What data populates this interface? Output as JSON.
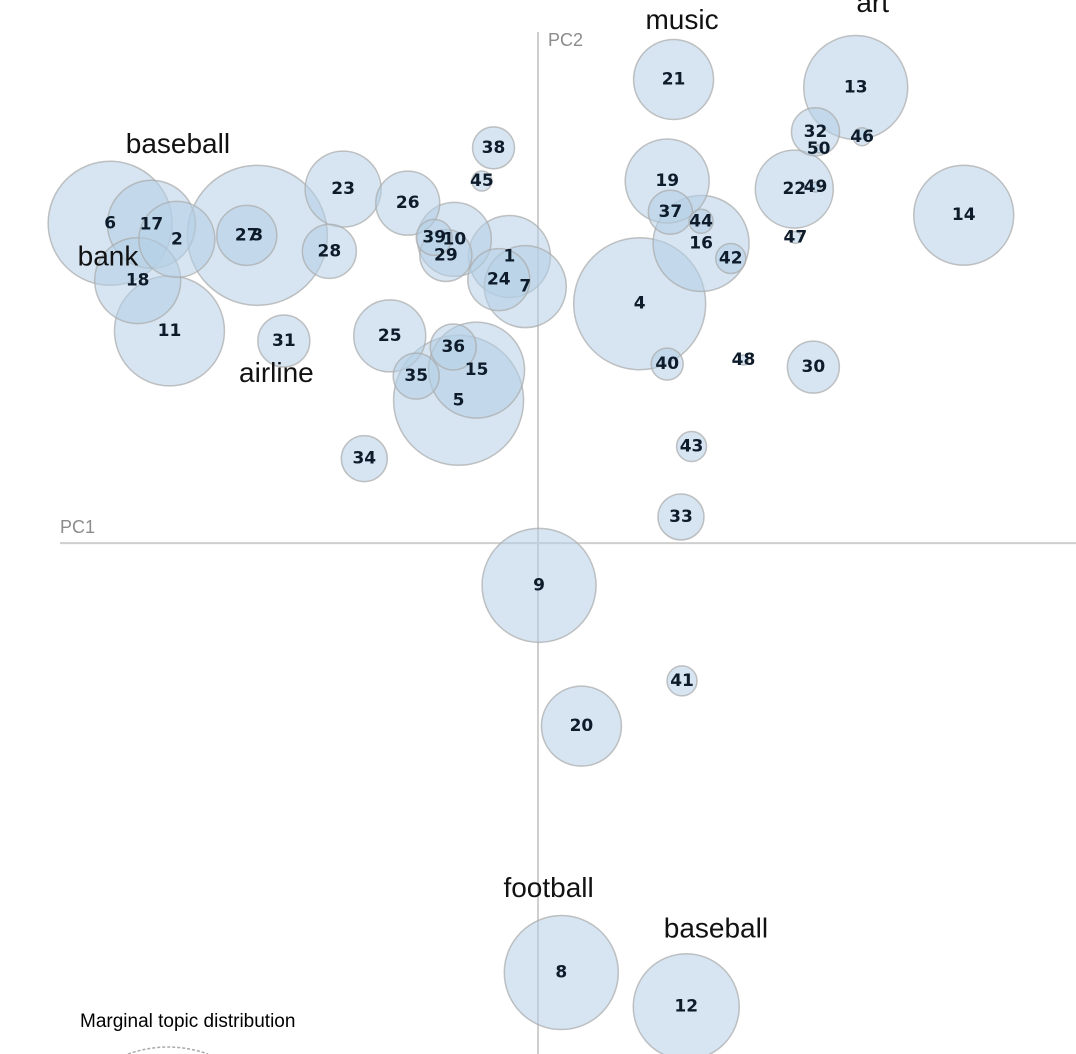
{
  "chart_data": {
    "type": "scatter",
    "xlabel": "PC1",
    "ylabel": "PC2",
    "xlim": [
      -508,
      508
    ],
    "ylim": [
      -508,
      540
    ],
    "grid": false,
    "legend": {
      "title": "Marginal topic distribution",
      "placement": "bottom-left"
    },
    "points": [
      {
        "label": "1",
        "x": -27,
        "y": 285,
        "size": 41
      },
      {
        "label": "2",
        "x": -341,
        "y": 302,
        "size": 38
      },
      {
        "label": "3",
        "x": -265,
        "y": 306,
        "size": 70
      },
      {
        "label": "4",
        "x": 96,
        "y": 238,
        "size": 66
      },
      {
        "label": "5",
        "x": -75,
        "y": 142,
        "size": 65
      },
      {
        "label": "6",
        "x": -404,
        "y": 318,
        "size": 62
      },
      {
        "label": "7",
        "x": -12,
        "y": 255,
        "size": 41
      },
      {
        "label": "8",
        "x": 22,
        "y": -427,
        "size": 57
      },
      {
        "label": "9",
        "x": 1,
        "y": -42,
        "size": 57
      },
      {
        "label": "10",
        "x": -79,
        "y": 302,
        "size": 37
      },
      {
        "label": "11",
        "x": -348,
        "y": 211,
        "size": 55
      },
      {
        "label": "12",
        "x": 140,
        "y": -461,
        "size": 53
      },
      {
        "label": "13",
        "x": 300,
        "y": 453,
        "size": 52
      },
      {
        "label": "14",
        "x": 402,
        "y": 326,
        "size": 50
      },
      {
        "label": "15",
        "x": -58,
        "y": 172,
        "size": 48
      },
      {
        "label": "16",
        "x": 154,
        "y": 298,
        "size": 48
      },
      {
        "label": "17",
        "x": -365,
        "y": 317,
        "size": 44
      },
      {
        "label": "18",
        "x": -378,
        "y": 261,
        "size": 43
      },
      {
        "label": "19",
        "x": 122,
        "y": 360,
        "size": 42
      },
      {
        "label": "20",
        "x": 41,
        "y": -182,
        "size": 40
      },
      {
        "label": "21",
        "x": 128,
        "y": 461,
        "size": 40
      },
      {
        "label": "22",
        "x": 242,
        "y": 352,
        "size": 39
      },
      {
        "label": "23",
        "x": -184,
        "y": 352,
        "size": 38
      },
      {
        "label": "24",
        "x": -37,
        "y": 262,
        "size": 31
      },
      {
        "label": "25",
        "x": -140,
        "y": 206,
        "size": 36
      },
      {
        "label": "26",
        "x": -123,
        "y": 338,
        "size": 32
      },
      {
        "label": "27",
        "x": -275,
        "y": 306,
        "size": 30
      },
      {
        "label": "28",
        "x": -197,
        "y": 290,
        "size": 27
      },
      {
        "label": "29",
        "x": -87,
        "y": 286,
        "size": 26
      },
      {
        "label": "30",
        "x": 260,
        "y": 175,
        "size": 26
      },
      {
        "label": "31",
        "x": -240,
        "y": 201,
        "size": 26
      },
      {
        "label": "32",
        "x": 262,
        "y": 409,
        "size": 24
      },
      {
        "label": "33",
        "x": 135,
        "y": 26,
        "size": 23
      },
      {
        "label": "34",
        "x": -164,
        "y": 84,
        "size": 23
      },
      {
        "label": "35",
        "x": -115,
        "y": 166,
        "size": 23
      },
      {
        "label": "36",
        "x": -80,
        "y": 195,
        "size": 23
      },
      {
        "label": "37",
        "x": 125,
        "y": 329,
        "size": 22
      },
      {
        "label": "38",
        "x": -42,
        "y": 393,
        "size": 21
      },
      {
        "label": "39",
        "x": -98,
        "y": 304,
        "size": 18
      },
      {
        "label": "40",
        "x": 122,
        "y": 178,
        "size": 16
      },
      {
        "label": "41",
        "x": 136,
        "y": -137,
        "size": 15
      },
      {
        "label": "42",
        "x": 182,
        "y": 283,
        "size": 15
      },
      {
        "label": "43",
        "x": 145,
        "y": 96,
        "size": 15
      },
      {
        "label": "44",
        "x": 154,
        "y": 320,
        "size": 12
      },
      {
        "label": "45",
        "x": -53,
        "y": 360,
        "size": 10
      },
      {
        "label": "46",
        "x": 306,
        "y": 404,
        "size": 9
      },
      {
        "label": "47",
        "x": 243,
        "y": 304,
        "size": 6
      },
      {
        "label": "48",
        "x": 194,
        "y": 182,
        "size": 5
      },
      {
        "label": "49",
        "x": 262,
        "y": 354,
        "size": 5
      },
      {
        "label": "50",
        "x": 265,
        "y": 392,
        "size": 4
      }
    ],
    "annotations": [
      {
        "text": "music",
        "x": 136,
        "y": 511
      },
      {
        "text": "art",
        "x": 316,
        "y": 528
      },
      {
        "text": "baseball",
        "x": -340,
        "y": 388
      },
      {
        "text": "bank",
        "x": -406,
        "y": 276
      },
      {
        "text": "airline",
        "x": -247,
        "y": 160
      },
      {
        "text": "football",
        "x": 10,
        "y": -352
      },
      {
        "text": "baseball",
        "x": 168,
        "y": -392
      }
    ]
  }
}
